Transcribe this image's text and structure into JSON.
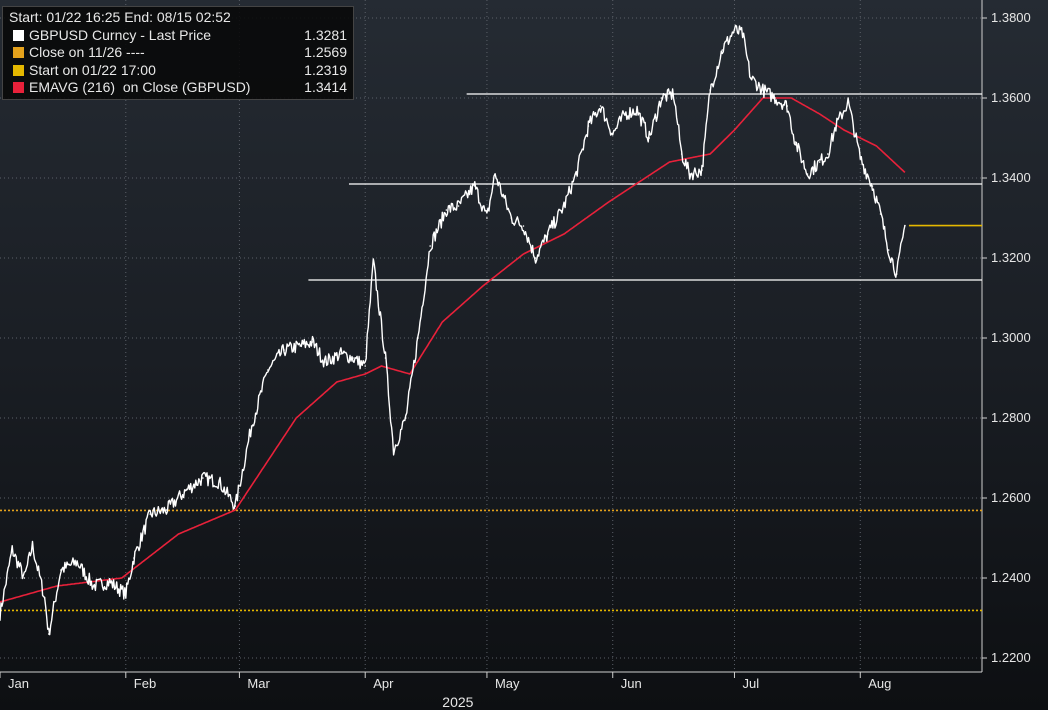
{
  "legend": {
    "header": "Start: 01/22 16:25 End: 08/15 02:52",
    "items": [
      {
        "label": "GBPUSD Curncy - Last Price",
        "value": "1.3281",
        "color": "#ffffff"
      },
      {
        "label": "Close on 11/26 ----",
        "value": "1.2569",
        "color": "#e5a21c"
      },
      {
        "label": "Start on 01/22 17:00",
        "value": "1.2319",
        "color": "#e5b800"
      },
      {
        "label": "EMAVG (216)  on Close (GBPUSD)",
        "value": "1.3414",
        "color": "#e8213a"
      }
    ]
  },
  "chart_data": {
    "type": "line",
    "x_labels": [
      "Jan",
      "Feb",
      "Mar",
      "Apr",
      "May",
      "Jun",
      "Jul",
      "Aug"
    ],
    "year_label": "2025",
    "y_ticks": [
      "1.2200",
      "1.2400",
      "1.2600",
      "1.2800",
      "1.3000",
      "1.3200",
      "1.3400",
      "1.3600",
      "1.3800"
    ],
    "ylim": [
      1.2165,
      1.3845
    ],
    "xlim": [
      "2025-01-01",
      "2025-08-31"
    ],
    "grid": true,
    "series": [
      {
        "name": "GBPUSD Curncy - Last Price",
        "color": "#ffffff",
        "points": [
          [
            "2025-01-01",
            1.231
          ],
          [
            "2025-01-04",
            1.247
          ],
          [
            "2025-01-07",
            1.24
          ],
          [
            "2025-01-09",
            1.248
          ],
          [
            "2025-01-12",
            1.235
          ],
          [
            "2025-01-13",
            1.226
          ],
          [
            "2025-01-16",
            1.242
          ],
          [
            "2025-01-20",
            1.244
          ],
          [
            "2025-01-24",
            1.238
          ],
          [
            "2025-01-28",
            1.239
          ],
          [
            "2025-02-01",
            1.236
          ],
          [
            "2025-02-03",
            1.245
          ],
          [
            "2025-02-07",
            1.256
          ],
          [
            "2025-02-11",
            1.257
          ],
          [
            "2025-02-16",
            1.262
          ],
          [
            "2025-02-20",
            1.265
          ],
          [
            "2025-02-24",
            1.264
          ],
          [
            "2025-02-28",
            1.258
          ],
          [
            "2025-03-04",
            1.278
          ],
          [
            "2025-03-08",
            1.292
          ],
          [
            "2025-03-12",
            1.297
          ],
          [
            "2025-03-16",
            1.298
          ],
          [
            "2025-03-19",
            1.299
          ],
          [
            "2025-03-22",
            1.294
          ],
          [
            "2025-03-26",
            1.296
          ],
          [
            "2025-03-29",
            1.295
          ],
          [
            "2025-04-01",
            1.293
          ],
          [
            "2025-04-03",
            1.319
          ],
          [
            "2025-04-06",
            1.295
          ],
          [
            "2025-04-08",
            1.272
          ],
          [
            "2025-04-11",
            1.28
          ],
          [
            "2025-04-14",
            1.3
          ],
          [
            "2025-04-17",
            1.323
          ],
          [
            "2025-04-21",
            1.332
          ],
          [
            "2025-04-24",
            1.333
          ],
          [
            "2025-04-28",
            1.338
          ],
          [
            "2025-05-01",
            1.33
          ],
          [
            "2025-05-03",
            1.341
          ],
          [
            "2025-05-07",
            1.33
          ],
          [
            "2025-05-10",
            1.328
          ],
          [
            "2025-05-13",
            1.32
          ],
          [
            "2025-05-16",
            1.326
          ],
          [
            "2025-05-20",
            1.333
          ],
          [
            "2025-05-23",
            1.341
          ],
          [
            "2025-05-26",
            1.353
          ],
          [
            "2025-05-29",
            1.358
          ],
          [
            "2025-06-01",
            1.351
          ],
          [
            "2025-06-04",
            1.356
          ],
          [
            "2025-06-07",
            1.357
          ],
          [
            "2025-06-10",
            1.35
          ],
          [
            "2025-06-13",
            1.36
          ],
          [
            "2025-06-16",
            1.361
          ],
          [
            "2025-06-18",
            1.346
          ],
          [
            "2025-06-20",
            1.341
          ],
          [
            "2025-06-23",
            1.342
          ],
          [
            "2025-06-25",
            1.362
          ],
          [
            "2025-06-28",
            1.372
          ],
          [
            "2025-07-01",
            1.377
          ],
          [
            "2025-07-03",
            1.376
          ],
          [
            "2025-07-05",
            1.365
          ],
          [
            "2025-07-08",
            1.362
          ],
          [
            "2025-07-11",
            1.36
          ],
          [
            "2025-07-14",
            1.358
          ],
          [
            "2025-07-16",
            1.349
          ],
          [
            "2025-07-19",
            1.341
          ],
          [
            "2025-07-22",
            1.344
          ],
          [
            "2025-07-24",
            1.346
          ],
          [
            "2025-07-26",
            1.353
          ],
          [
            "2025-07-29",
            1.359
          ],
          [
            "2025-08-01",
            1.345
          ],
          [
            "2025-08-04",
            1.338
          ],
          [
            "2025-08-06",
            1.331
          ],
          [
            "2025-08-08",
            1.322
          ],
          [
            "2025-08-10",
            1.316
          ],
          [
            "2025-08-12",
            1.3281
          ]
        ]
      },
      {
        "name": "EMAVG (216)  on Close (GBPUSD)",
        "color": "#e8213a",
        "points": [
          [
            "2025-01-01",
            1.234
          ],
          [
            "2025-01-15",
            1.238
          ],
          [
            "2025-01-31",
            1.24
          ],
          [
            "2025-02-14",
            1.251
          ],
          [
            "2025-02-28",
            1.257
          ],
          [
            "2025-03-15",
            1.28
          ],
          [
            "2025-03-25",
            1.289
          ],
          [
            "2025-04-01",
            1.291
          ],
          [
            "2025-04-05",
            1.293
          ],
          [
            "2025-04-12",
            1.291
          ],
          [
            "2025-04-20",
            1.304
          ],
          [
            "2025-04-30",
            1.313
          ],
          [
            "2025-05-10",
            1.321
          ],
          [
            "2025-05-20",
            1.326
          ],
          [
            "2025-05-31",
            1.334
          ],
          [
            "2025-06-15",
            1.344
          ],
          [
            "2025-06-25",
            1.346
          ],
          [
            "2025-07-01",
            1.352
          ],
          [
            "2025-07-08",
            1.36
          ],
          [
            "2025-07-15",
            1.36
          ],
          [
            "2025-07-22",
            1.356
          ],
          [
            "2025-07-28",
            1.352
          ],
          [
            "2025-08-05",
            1.348
          ],
          [
            "2025-08-12",
            1.3414
          ]
        ]
      }
    ],
    "reference_lines": [
      {
        "label": "Close on 11/26 ----",
        "value": 1.2569,
        "style": "dotted",
        "color": "#e5a21c"
      },
      {
        "label": "Start on 01/22 17:00",
        "value": 1.2319,
        "style": "dotted",
        "color": "#e5b800"
      },
      {
        "label": "GBPUSD Curncy - Last Price",
        "value": 1.3281,
        "style": "solid",
        "color": "#e5b800",
        "from": "2025-08-13",
        "to": "2025-08-31"
      }
    ],
    "support_resistance_lines": [
      {
        "value": 1.361,
        "from": "2025-04-26",
        "to": "2025-08-31"
      },
      {
        "value": 1.3385,
        "from": "2025-03-28",
        "to": "2025-08-31"
      },
      {
        "value": 1.3145,
        "from": "2025-03-18",
        "to": "2025-08-31"
      }
    ]
  }
}
